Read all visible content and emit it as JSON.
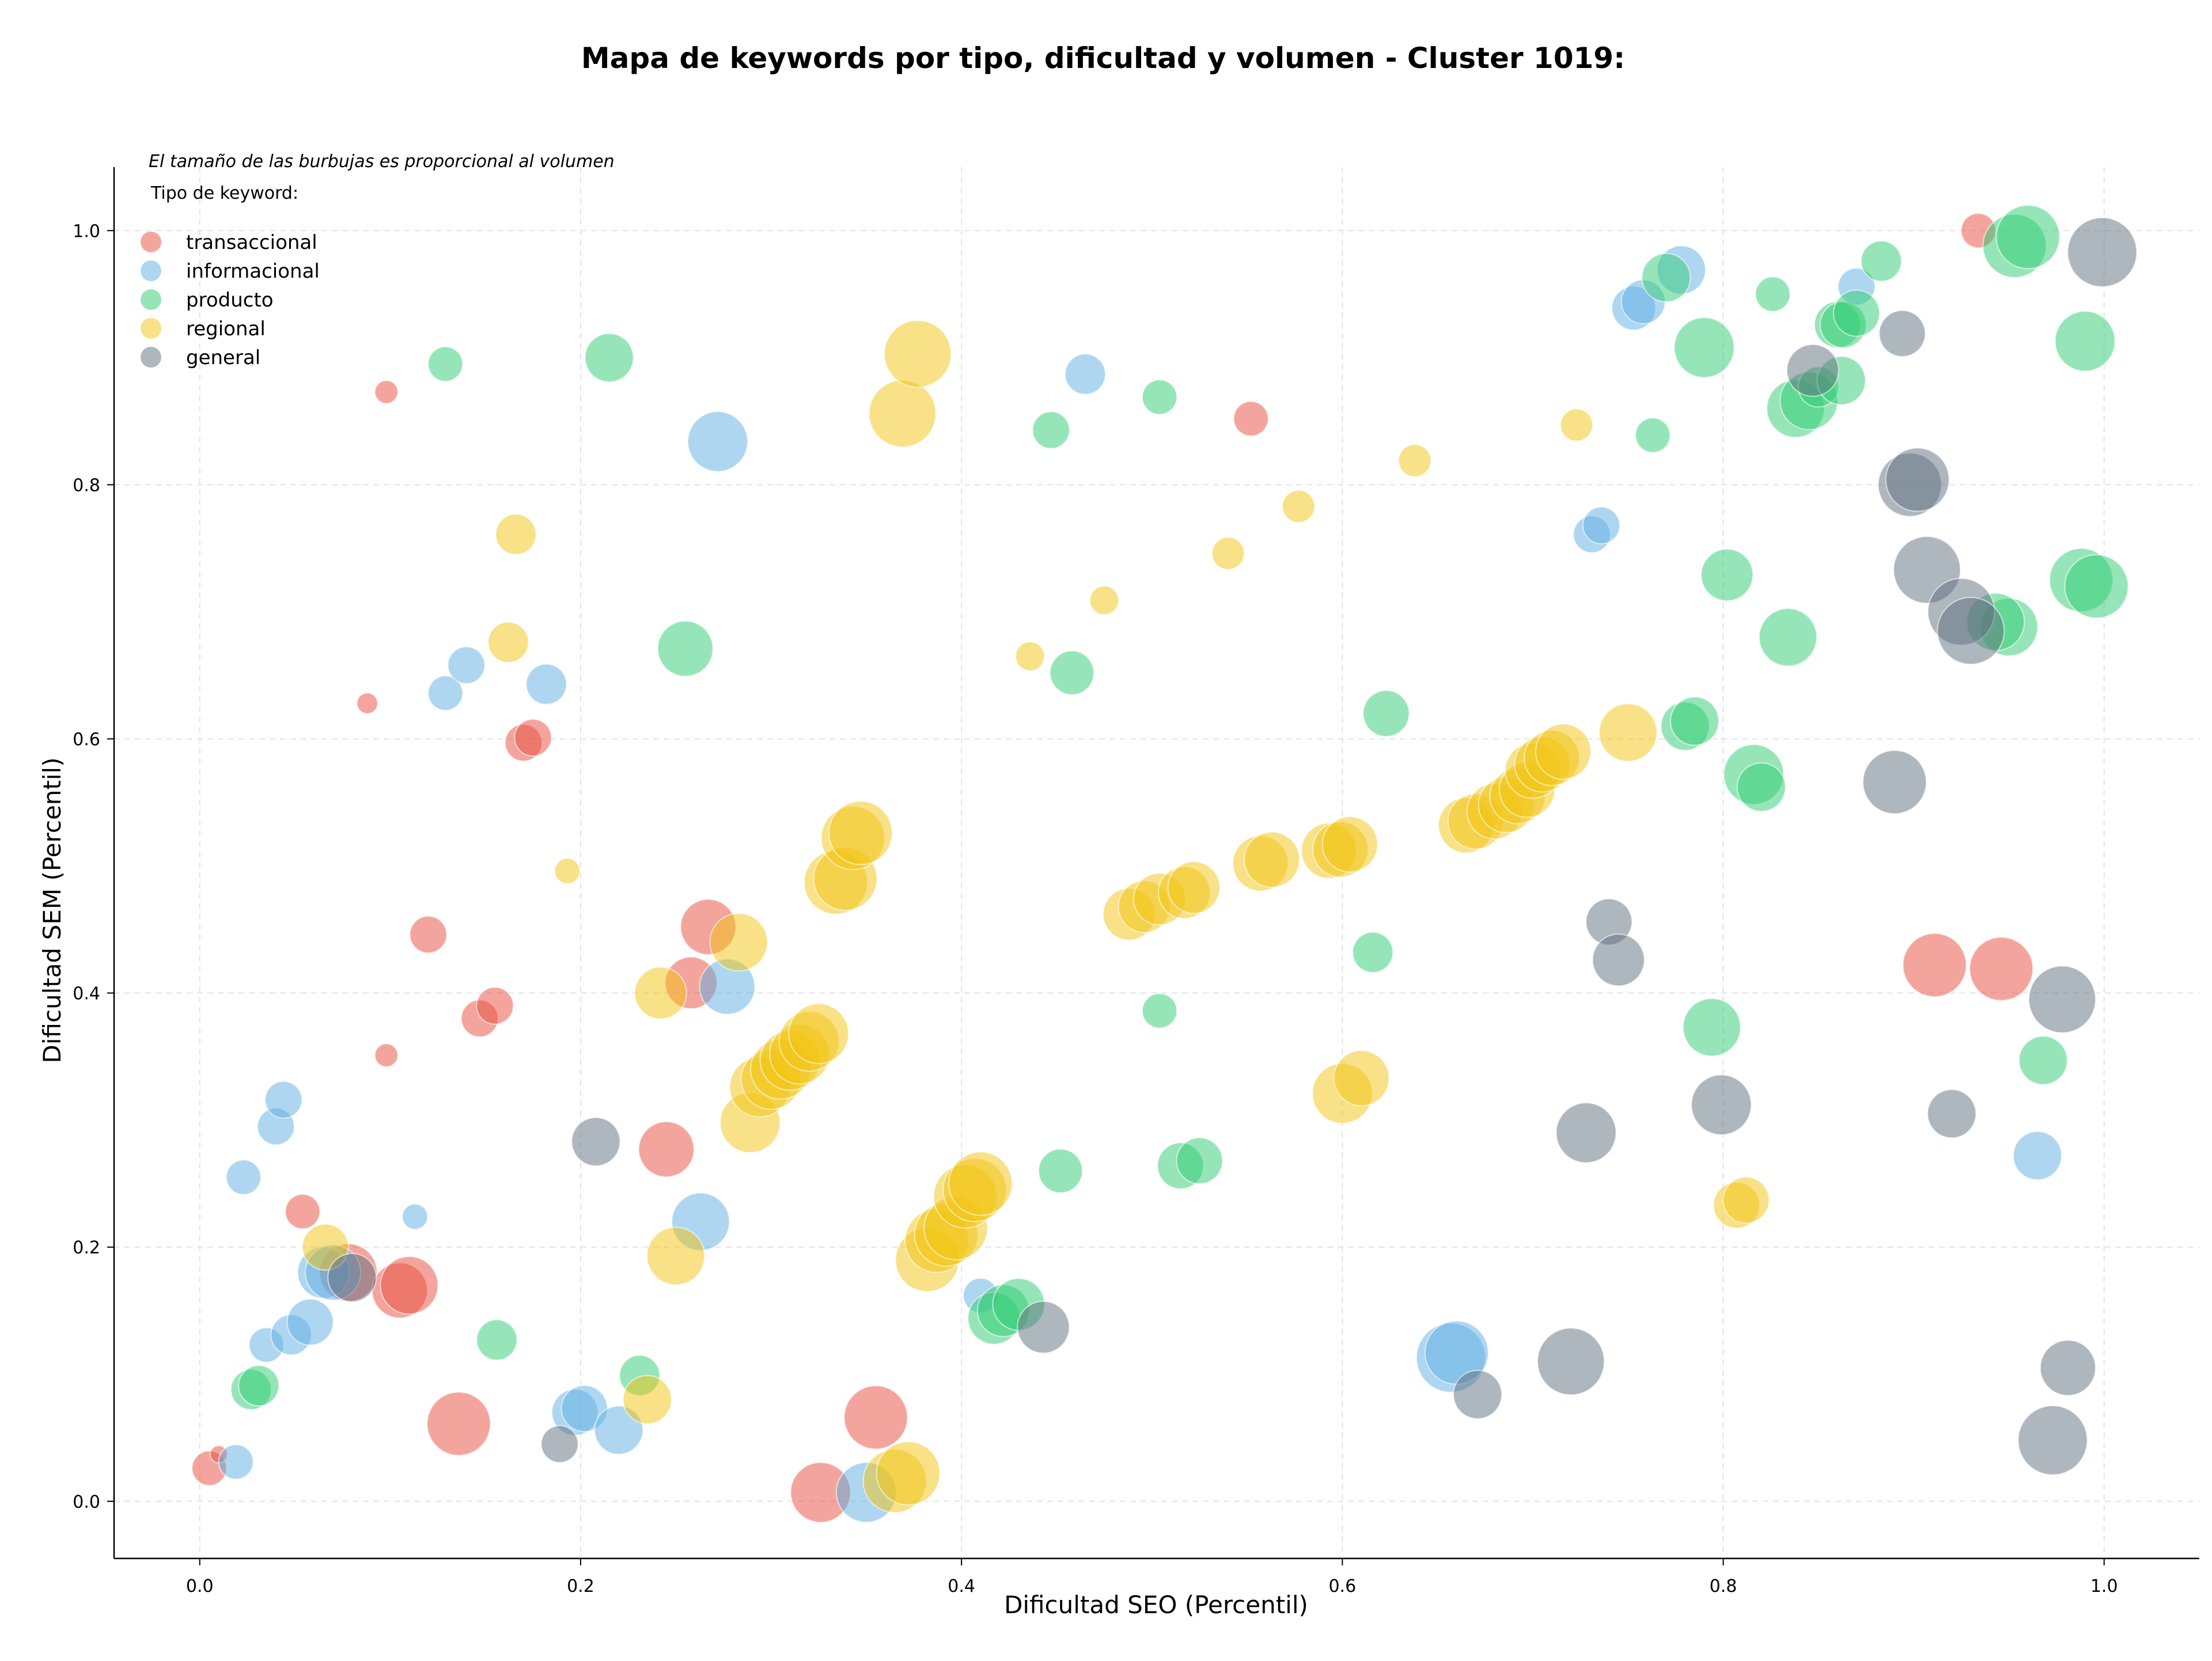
{
  "chart_data": {
    "type": "scatter",
    "title": "Mapa de keywords por tipo, dificultad y volumen - Cluster 1019:",
    "xlabel": "Dificultad SEO (Percentil)",
    "ylabel": "Dificultad SEM (Percentil)",
    "xlim": [
      -0.045,
      1.05
    ],
    "ylim": [
      -0.045,
      1.05
    ],
    "x_ticks": [
      "0.0",
      "0.2",
      "0.4",
      "0.6",
      "0.8",
      "1.0"
    ],
    "y_ticks": [
      "0.0",
      "0.2",
      "0.4",
      "0.6",
      "0.8",
      "1.0"
    ],
    "grid": true,
    "legend_position": "top-left",
    "size_note": "El tamaño de las burbujas es proporcional al volumen",
    "legend_title": "Tipo de keyword:",
    "series": [
      {
        "name": "transaccional",
        "color": "#e74c3c",
        "points": [
          [
            0.005,
            0.026,
            30
          ],
          [
            0.01,
            0.037,
            15
          ],
          [
            0.054,
            0.228,
            30
          ],
          [
            0.078,
            0.18,
            50
          ],
          [
            0.088,
            0.628,
            18
          ],
          [
            0.098,
            0.873,
            20
          ],
          [
            0.098,
            0.351,
            20
          ],
          [
            0.105,
            0.166,
            48
          ],
          [
            0.11,
            0.17,
            50
          ],
          [
            0.12,
            0.446,
            32
          ],
          [
            0.136,
            0.061,
            55
          ],
          [
            0.147,
            0.38,
            32
          ],
          [
            0.155,
            0.39,
            32
          ],
          [
            0.17,
            0.597,
            32
          ],
          [
            0.175,
            0.601,
            32
          ],
          [
            0.245,
            0.277,
            48
          ],
          [
            0.258,
            0.408,
            45
          ],
          [
            0.267,
            0.452,
            48
          ],
          [
            0.326,
            0.007,
            52
          ],
          [
            0.355,
            0.066,
            55
          ],
          [
            0.552,
            0.852,
            30
          ],
          [
            0.911,
            0.422,
            55
          ],
          [
            0.946,
            0.419,
            55
          ],
          [
            0.934,
            1.0,
            30
          ]
        ]
      },
      {
        "name": "informacional",
        "color": "#5dade2",
        "points": [
          [
            0.019,
            0.031,
            30
          ],
          [
            0.023,
            0.255,
            30
          ],
          [
            0.035,
            0.123,
            30
          ],
          [
            0.04,
            0.295,
            32
          ],
          [
            0.044,
            0.316,
            32
          ],
          [
            0.048,
            0.131,
            35
          ],
          [
            0.058,
            0.141,
            40
          ],
          [
            0.065,
            0.18,
            45
          ],
          [
            0.07,
            0.18,
            48
          ],
          [
            0.113,
            0.224,
            22
          ],
          [
            0.129,
            0.636,
            30
          ],
          [
            0.14,
            0.658,
            32
          ],
          [
            0.182,
            0.643,
            35
          ],
          [
            0.197,
            0.07,
            40
          ],
          [
            0.202,
            0.073,
            40
          ],
          [
            0.22,
            0.056,
            42
          ],
          [
            0.263,
            0.22,
            50
          ],
          [
            0.272,
            0.834,
            52
          ],
          [
            0.277,
            0.405,
            48
          ],
          [
            0.35,
            0.007,
            52
          ],
          [
            0.41,
            0.162,
            30
          ],
          [
            0.465,
            0.887,
            35
          ],
          [
            0.657,
            0.113,
            60
          ],
          [
            0.66,
            0.117,
            55
          ],
          [
            0.731,
            0.761,
            32
          ],
          [
            0.736,
            0.768,
            32
          ],
          [
            0.753,
            0.939,
            38
          ],
          [
            0.758,
            0.944,
            38
          ],
          [
            0.778,
            0.969,
            42
          ],
          [
            0.87,
            0.956,
            32
          ],
          [
            0.965,
            0.272,
            42
          ]
        ]
      },
      {
        "name": "producto",
        "color": "#2ecc71",
        "points": [
          [
            0.027,
            0.088,
            35
          ],
          [
            0.031,
            0.091,
            35
          ],
          [
            0.129,
            0.895,
            30
          ],
          [
            0.156,
            0.127,
            35
          ],
          [
            0.215,
            0.9,
            42
          ],
          [
            0.231,
            0.099,
            35
          ],
          [
            0.255,
            0.671,
            48
          ],
          [
            0.417,
            0.144,
            45
          ],
          [
            0.422,
            0.15,
            45
          ],
          [
            0.43,
            0.155,
            45
          ],
          [
            0.447,
            0.843,
            32
          ],
          [
            0.452,
            0.26,
            38
          ],
          [
            0.458,
            0.652,
            38
          ],
          [
            0.504,
            0.386,
            30
          ],
          [
            0.504,
            0.869,
            30
          ],
          [
            0.515,
            0.264,
            40
          ],
          [
            0.525,
            0.268,
            40
          ],
          [
            0.616,
            0.432,
            35
          ],
          [
            0.623,
            0.62,
            40
          ],
          [
            0.763,
            0.839,
            30
          ],
          [
            0.77,
            0.963,
            42
          ],
          [
            0.78,
            0.61,
            42
          ],
          [
            0.785,
            0.614,
            42
          ],
          [
            0.79,
            0.908,
            52
          ],
          [
            0.794,
            0.373,
            50
          ],
          [
            0.802,
            0.729,
            45
          ],
          [
            0.816,
            0.572,
            52
          ],
          [
            0.82,
            0.562,
            42
          ],
          [
            0.826,
            0.95,
            30
          ],
          [
            0.834,
            0.68,
            50
          ],
          [
            0.838,
            0.86,
            50
          ],
          [
            0.845,
            0.866,
            50
          ],
          [
            0.85,
            0.877,
            35
          ],
          [
            0.86,
            0.926,
            40
          ],
          [
            0.863,
            0.926,
            40
          ],
          [
            0.87,
            0.935,
            40
          ],
          [
            0.862,
            0.882,
            42
          ],
          [
            0.883,
            0.976,
            35
          ],
          [
            0.95,
            0.688,
            50
          ],
          [
            0.943,
            0.692,
            50
          ],
          [
            0.953,
            0.988,
            55
          ],
          [
            0.96,
            0.995,
            55
          ],
          [
            0.968,
            0.347,
            42
          ],
          [
            0.99,
            0.913,
            52
          ],
          [
            0.988,
            0.725,
            55
          ],
          [
            0.996,
            0.72,
            55
          ]
        ]
      },
      {
        "name": "regional",
        "color": "#f1c40f",
        "points": [
          [
            0.066,
            0.2,
            40
          ],
          [
            0.162,
            0.676,
            35
          ],
          [
            0.166,
            0.761,
            35
          ],
          [
            0.193,
            0.496,
            22
          ],
          [
            0.235,
            0.08,
            42
          ],
          [
            0.242,
            0.4,
            45
          ],
          [
            0.25,
            0.193,
            50
          ],
          [
            0.283,
            0.44,
            50
          ],
          [
            0.289,
            0.298,
            52
          ],
          [
            0.294,
            0.326,
            52
          ],
          [
            0.3,
            0.332,
            52
          ],
          [
            0.305,
            0.34,
            52
          ],
          [
            0.31,
            0.347,
            52
          ],
          [
            0.315,
            0.352,
            52
          ],
          [
            0.32,
            0.362,
            52
          ],
          [
            0.325,
            0.368,
            52
          ],
          [
            0.334,
            0.487,
            55
          ],
          [
            0.339,
            0.49,
            55
          ],
          [
            0.343,
            0.522,
            55
          ],
          [
            0.347,
            0.526,
            55
          ],
          [
            0.365,
            0.016,
            55
          ],
          [
            0.372,
            0.022,
            55
          ],
          [
            0.369,
            0.856,
            58
          ],
          [
            0.377,
            0.903,
            58
          ],
          [
            0.382,
            0.19,
            55
          ],
          [
            0.387,
            0.205,
            55
          ],
          [
            0.392,
            0.21,
            55
          ],
          [
            0.397,
            0.215,
            55
          ],
          [
            0.402,
            0.24,
            55
          ],
          [
            0.407,
            0.245,
            55
          ],
          [
            0.41,
            0.25,
            55
          ],
          [
            0.436,
            0.665,
            25
          ],
          [
            0.475,
            0.709,
            25
          ],
          [
            0.488,
            0.462,
            45
          ],
          [
            0.496,
            0.468,
            45
          ],
          [
            0.504,
            0.474,
            45
          ],
          [
            0.517,
            0.479,
            45
          ],
          [
            0.522,
            0.483,
            45
          ],
          [
            0.54,
            0.746,
            28
          ],
          [
            0.557,
            0.502,
            48
          ],
          [
            0.563,
            0.505,
            48
          ],
          [
            0.577,
            0.783,
            28
          ],
          [
            0.593,
            0.512,
            48
          ],
          [
            0.599,
            0.513,
            48
          ],
          [
            0.604,
            0.517,
            48
          ],
          [
            0.6,
            0.321,
            52
          ],
          [
            0.61,
            0.333,
            48
          ],
          [
            0.638,
            0.819,
            28
          ],
          [
            0.665,
            0.532,
            48
          ],
          [
            0.67,
            0.535,
            48
          ],
          [
            0.68,
            0.543,
            48
          ],
          [
            0.686,
            0.548,
            48
          ],
          [
            0.692,
            0.555,
            48
          ],
          [
            0.697,
            0.56,
            48
          ],
          [
            0.7,
            0.575,
            48
          ],
          [
            0.705,
            0.58,
            48
          ],
          [
            0.71,
            0.585,
            48
          ],
          [
            0.716,
            0.59,
            48
          ],
          [
            0.723,
            0.847,
            28
          ],
          [
            0.75,
            0.605,
            50
          ],
          [
            0.807,
            0.233,
            40
          ],
          [
            0.812,
            0.237,
            40
          ]
        ]
      },
      {
        "name": "general",
        "color": "#5d6d7e",
        "points": [
          [
            0.08,
            0.176,
            42
          ],
          [
            0.189,
            0.045,
            32
          ],
          [
            0.208,
            0.283,
            42
          ],
          [
            0.443,
            0.137,
            45
          ],
          [
            0.671,
            0.084,
            42
          ],
          [
            0.72,
            0.11,
            58
          ],
          [
            0.728,
            0.29,
            52
          ],
          [
            0.74,
            0.456,
            40
          ],
          [
            0.745,
            0.426,
            45
          ],
          [
            0.799,
            0.312,
            52
          ],
          [
            0.847,
            0.89,
            45
          ],
          [
            0.89,
            0.566,
            55
          ],
          [
            0.894,
            0.919,
            40
          ],
          [
            0.898,
            0.8,
            55
          ],
          [
            0.902,
            0.804,
            55
          ],
          [
            0.907,
            0.733,
            58
          ],
          [
            0.925,
            0.7,
            58
          ],
          [
            0.93,
            0.685,
            58
          ],
          [
            0.92,
            0.305,
            42
          ],
          [
            0.973,
            0.048,
            60
          ],
          [
            0.978,
            0.395,
            58
          ],
          [
            0.981,
            0.105,
            48
          ],
          [
            0.999,
            0.983,
            60
          ]
        ]
      }
    ]
  }
}
